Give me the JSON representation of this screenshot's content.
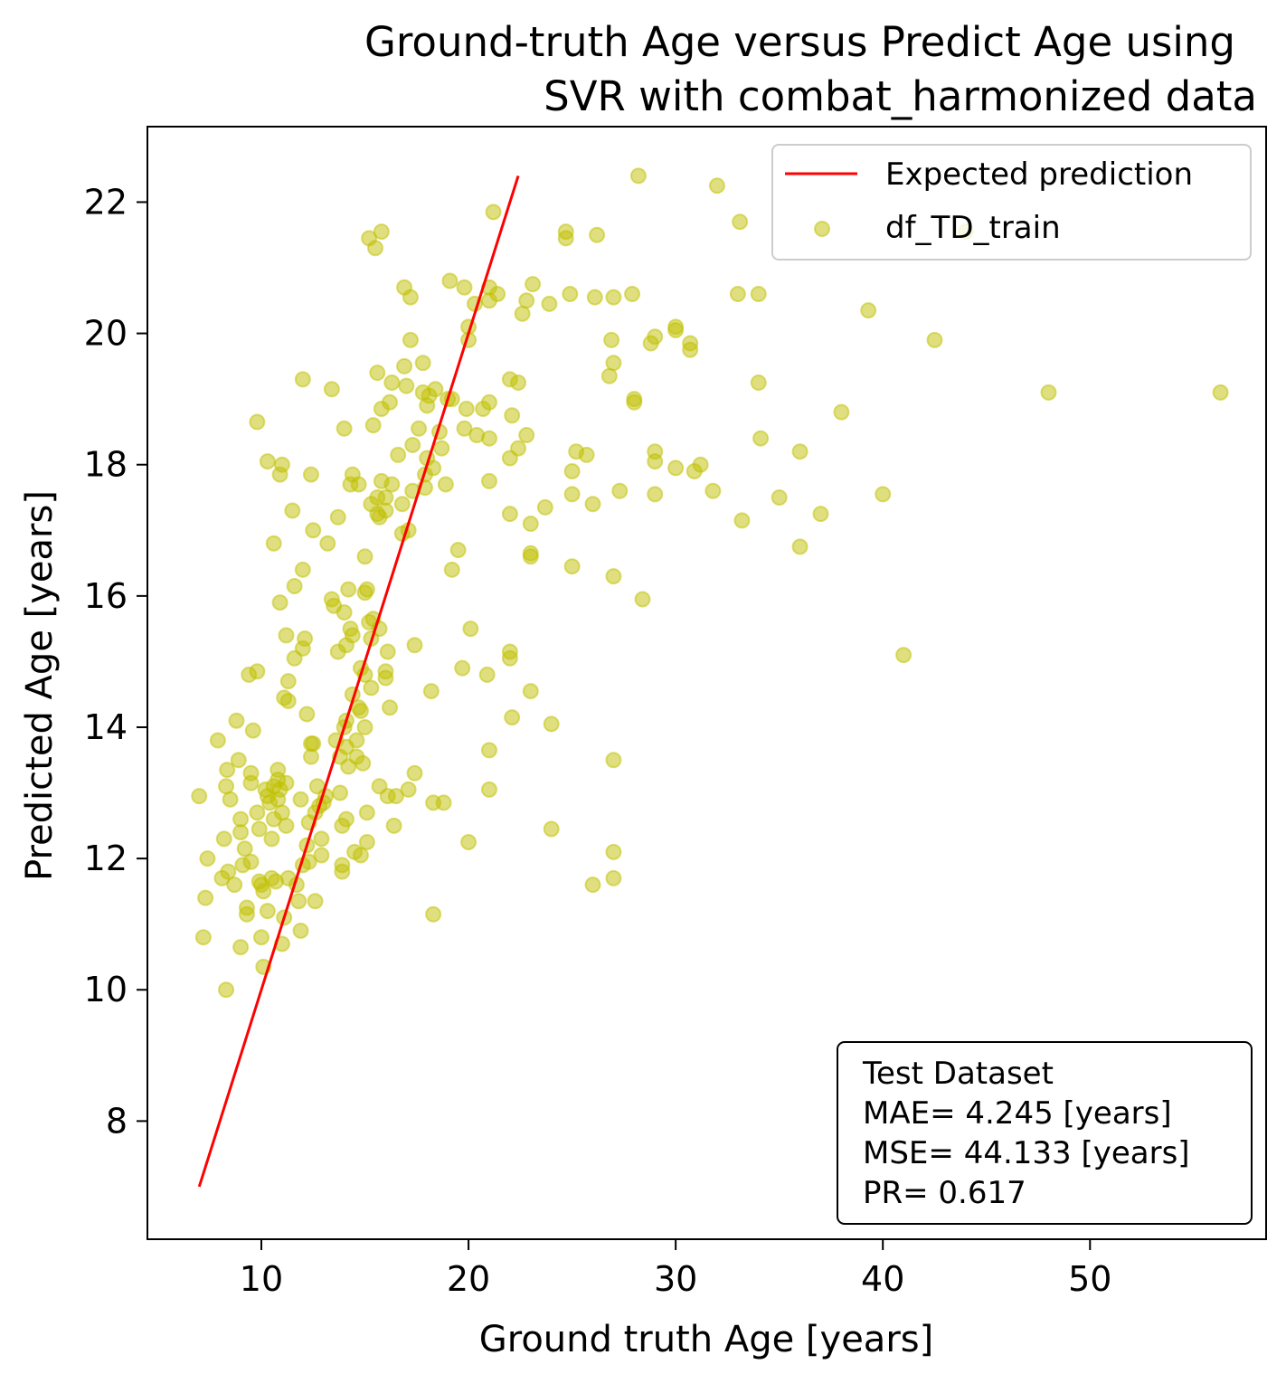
{
  "chart_data": {
    "type": "scatter",
    "title_lines": [
      "Ground-truth Age versus Predict Age using",
      "SVR  with combat_harmonized data"
    ],
    "xlabel": "Ground truth Age [years]",
    "ylabel": "Predicted Age [years]",
    "xlim": [
      4.5,
      58.5
    ],
    "ylim": [
      6.2,
      23.15
    ],
    "xticks": [
      10,
      20,
      30,
      40,
      50
    ],
    "yticks": [
      8,
      10,
      12,
      14,
      16,
      18,
      20,
      22
    ],
    "grid": false,
    "legend_position": "top-right",
    "colors": {
      "points": "#bfbf00",
      "line": "#ff0000"
    },
    "expected_line": {
      "name": "Expected prediction",
      "x": [
        7.0,
        22.4
      ],
      "y": [
        7.0,
        22.4
      ]
    },
    "series": [
      {
        "name": "df_TD_train",
        "points": [
          [
            7.0,
            12.95
          ],
          [
            7.2,
            10.8
          ],
          [
            7.3,
            11.4
          ],
          [
            7.4,
            12.0
          ],
          [
            7.9,
            13.8
          ],
          [
            8.1,
            11.7
          ],
          [
            8.2,
            12.3
          ],
          [
            8.3,
            10.0
          ],
          [
            8.3,
            13.1
          ],
          [
            8.35,
            13.35
          ],
          [
            8.4,
            11.8
          ],
          [
            8.5,
            12.9
          ],
          [
            8.7,
            11.6
          ],
          [
            8.8,
            14.1
          ],
          [
            8.9,
            13.5
          ],
          [
            9.0,
            12.4
          ],
          [
            9.0,
            12.6
          ],
          [
            9.0,
            10.65
          ],
          [
            9.1,
            11.9
          ],
          [
            9.2,
            12.15
          ],
          [
            9.3,
            11.25
          ],
          [
            9.3,
            11.15
          ],
          [
            9.4,
            14.8
          ],
          [
            9.5,
            13.3
          ],
          [
            9.5,
            11.95
          ],
          [
            9.5,
            13.15
          ],
          [
            9.6,
            13.95
          ],
          [
            9.8,
            12.7
          ],
          [
            9.8,
            14.85
          ],
          [
            9.8,
            18.65
          ],
          [
            9.9,
            12.45
          ],
          [
            9.9,
            11.65
          ],
          [
            10.0,
            10.8
          ],
          [
            10.0,
            11.6
          ],
          [
            10.1,
            11.5
          ],
          [
            10.1,
            10.35
          ],
          [
            10.2,
            13.05
          ],
          [
            10.3,
            12.95
          ],
          [
            10.3,
            11.2
          ],
          [
            10.3,
            18.05
          ],
          [
            10.4,
            12.85
          ],
          [
            10.5,
            12.3
          ],
          [
            10.5,
            11.7
          ],
          [
            10.6,
            13.1
          ],
          [
            10.6,
            12.6
          ],
          [
            10.6,
            16.8
          ],
          [
            10.7,
            11.65
          ],
          [
            10.8,
            12.9
          ],
          [
            10.8,
            13.35
          ],
          [
            10.8,
            13.2
          ],
          [
            10.9,
            17.85
          ],
          [
            10.9,
            15.9
          ],
          [
            10.9,
            13.05
          ],
          [
            11.0,
            18.0
          ],
          [
            11.0,
            12.7
          ],
          [
            11.0,
            10.7
          ],
          [
            11.1,
            14.45
          ],
          [
            11.1,
            11.1
          ],
          [
            11.2,
            15.4
          ],
          [
            11.2,
            13.15
          ],
          [
            11.2,
            12.5
          ],
          [
            11.3,
            14.7
          ],
          [
            11.3,
            14.4
          ],
          [
            11.3,
            11.7
          ],
          [
            11.5,
            17.3
          ],
          [
            11.6,
            16.15
          ],
          [
            11.6,
            15.05
          ],
          [
            11.7,
            11.6
          ],
          [
            11.8,
            11.35
          ],
          [
            11.9,
            12.9
          ],
          [
            11.9,
            10.9
          ],
          [
            12.0,
            19.3
          ],
          [
            12.0,
            16.4
          ],
          [
            12.0,
            15.2
          ],
          [
            12.0,
            11.9
          ],
          [
            12.1,
            15.35
          ],
          [
            12.2,
            14.2
          ],
          [
            12.2,
            12.2
          ],
          [
            12.3,
            12.55
          ],
          [
            12.3,
            11.95
          ],
          [
            12.4,
            17.85
          ],
          [
            12.4,
            13.75
          ],
          [
            12.4,
            13.55
          ],
          [
            12.5,
            17.0
          ],
          [
            12.5,
            13.75
          ],
          [
            12.6,
            11.35
          ],
          [
            12.6,
            12.7
          ],
          [
            12.7,
            13.1
          ],
          [
            12.8,
            12.8
          ],
          [
            12.9,
            12.05
          ],
          [
            12.9,
            12.3
          ],
          [
            13.0,
            12.85
          ],
          [
            13.1,
            12.95
          ],
          [
            13.2,
            16.8
          ],
          [
            13.4,
            19.15
          ],
          [
            13.4,
            15.95
          ],
          [
            13.5,
            15.85
          ],
          [
            13.6,
            13.8
          ],
          [
            13.7,
            17.2
          ],
          [
            13.7,
            15.15
          ],
          [
            13.8,
            13.55
          ],
          [
            13.8,
            13.0
          ],
          [
            13.9,
            12.5
          ],
          [
            13.9,
            11.9
          ],
          [
            13.9,
            11.8
          ],
          [
            14.0,
            18.55
          ],
          [
            14.0,
            15.75
          ],
          [
            14.0,
            14.0
          ],
          [
            14.1,
            15.25
          ],
          [
            14.1,
            14.1
          ],
          [
            14.1,
            13.7
          ],
          [
            14.1,
            12.6
          ],
          [
            14.2,
            16.1
          ],
          [
            14.2,
            13.4
          ],
          [
            14.3,
            17.7
          ],
          [
            14.3,
            15.5
          ],
          [
            14.4,
            17.85
          ],
          [
            14.4,
            15.4
          ],
          [
            14.4,
            14.5
          ],
          [
            14.5,
            12.1
          ],
          [
            14.6,
            13.8
          ],
          [
            14.6,
            13.55
          ],
          [
            14.7,
            17.7
          ],
          [
            14.7,
            14.3
          ],
          [
            14.8,
            14.9
          ],
          [
            14.8,
            12.05
          ],
          [
            14.8,
            14.25
          ],
          [
            14.9,
            13.45
          ],
          [
            15.0,
            16.6
          ],
          [
            15.0,
            16.05
          ],
          [
            15.0,
            14.8
          ],
          [
            15.0,
            14.0
          ],
          [
            15.1,
            12.7
          ],
          [
            15.1,
            16.1
          ],
          [
            15.1,
            12.25
          ],
          [
            15.2,
            21.45
          ],
          [
            15.2,
            15.6
          ],
          [
            15.3,
            17.4
          ],
          [
            15.3,
            14.6
          ],
          [
            15.3,
            15.35
          ],
          [
            15.4,
            18.6
          ],
          [
            15.4,
            15.65
          ],
          [
            15.5,
            21.3
          ],
          [
            15.6,
            19.4
          ],
          [
            15.6,
            17.25
          ],
          [
            15.6,
            17.5
          ],
          [
            15.7,
            17.2
          ],
          [
            15.7,
            15.5
          ],
          [
            15.7,
            13.1
          ],
          [
            15.8,
            21.55
          ],
          [
            15.8,
            18.85
          ],
          [
            15.8,
            17.75
          ],
          [
            16.0,
            14.85
          ],
          [
            16.0,
            14.75
          ],
          [
            16.0,
            17.3
          ],
          [
            16.0,
            17.5
          ],
          [
            16.1,
            15.15
          ],
          [
            16.1,
            12.95
          ],
          [
            16.2,
            18.95
          ],
          [
            16.2,
            14.3
          ],
          [
            16.3,
            19.25
          ],
          [
            16.3,
            17.7
          ],
          [
            16.4,
            12.5
          ],
          [
            16.5,
            12.95
          ],
          [
            16.6,
            18.15
          ],
          [
            16.8,
            17.4
          ],
          [
            16.8,
            16.95
          ],
          [
            16.9,
            20.7
          ],
          [
            16.9,
            19.5
          ],
          [
            17.0,
            19.2
          ],
          [
            17.1,
            17.0
          ],
          [
            17.1,
            13.05
          ],
          [
            17.2,
            20.55
          ],
          [
            17.2,
            19.9
          ],
          [
            17.3,
            17.6
          ],
          [
            17.3,
            18.3
          ],
          [
            17.4,
            15.25
          ],
          [
            17.4,
            13.3
          ],
          [
            17.6,
            18.55
          ],
          [
            17.8,
            19.55
          ],
          [
            17.8,
            19.1
          ],
          [
            17.9,
            17.85
          ],
          [
            17.9,
            17.65
          ],
          [
            18.0,
            18.9
          ],
          [
            18.0,
            18.1
          ],
          [
            18.1,
            19.05
          ],
          [
            18.2,
            14.55
          ],
          [
            18.3,
            17.95
          ],
          [
            18.3,
            12.85
          ],
          [
            18.3,
            11.15
          ],
          [
            18.4,
            19.15
          ],
          [
            18.6,
            18.5
          ],
          [
            18.7,
            18.25
          ],
          [
            18.8,
            12.85
          ],
          [
            18.9,
            17.7
          ],
          [
            19.0,
            19.0
          ],
          [
            19.1,
            20.8
          ],
          [
            19.2,
            19.0
          ],
          [
            19.2,
            16.4
          ],
          [
            19.5,
            16.7
          ],
          [
            19.7,
            14.9
          ],
          [
            19.8,
            18.55
          ],
          [
            19.8,
            20.7
          ],
          [
            19.9,
            18.85
          ],
          [
            20.0,
            20.1
          ],
          [
            20.0,
            19.9
          ],
          [
            20.0,
            12.25
          ],
          [
            20.1,
            15.5
          ],
          [
            20.3,
            20.45
          ],
          [
            20.4,
            18.45
          ],
          [
            20.7,
            18.85
          ],
          [
            20.9,
            14.8
          ],
          [
            21.0,
            20.5
          ],
          [
            21.0,
            20.7
          ],
          [
            21.0,
            18.95
          ],
          [
            21.0,
            18.4
          ],
          [
            21.0,
            17.75
          ],
          [
            21.0,
            13.65
          ],
          [
            21.0,
            13.05
          ],
          [
            21.2,
            21.85
          ],
          [
            21.4,
            20.6
          ],
          [
            22.0,
            19.3
          ],
          [
            22.0,
            18.1
          ],
          [
            22.0,
            17.25
          ],
          [
            22.0,
            15.15
          ],
          [
            22.0,
            15.05
          ],
          [
            22.1,
            18.75
          ],
          [
            22.1,
            14.15
          ],
          [
            22.4,
            19.25
          ],
          [
            22.4,
            18.25
          ],
          [
            22.6,
            20.3
          ],
          [
            22.8,
            20.5
          ],
          [
            22.8,
            18.45
          ],
          [
            23.0,
            17.1
          ],
          [
            23.0,
            16.65
          ],
          [
            23.0,
            16.6
          ],
          [
            23.0,
            14.55
          ],
          [
            23.1,
            20.75
          ],
          [
            23.7,
            17.35
          ],
          [
            23.9,
            20.45
          ],
          [
            24.0,
            14.05
          ],
          [
            24.0,
            12.45
          ],
          [
            24.7,
            21.55
          ],
          [
            24.7,
            21.45
          ],
          [
            24.9,
            20.6
          ],
          [
            25.0,
            17.9
          ],
          [
            25.0,
            17.55
          ],
          [
            25.0,
            16.45
          ],
          [
            25.2,
            18.2
          ],
          [
            25.7,
            18.15
          ],
          [
            26.0,
            17.4
          ],
          [
            26.0,
            11.6
          ],
          [
            26.1,
            20.55
          ],
          [
            26.2,
            21.5
          ],
          [
            26.8,
            19.35
          ],
          [
            26.9,
            19.9
          ],
          [
            27.0,
            19.55
          ],
          [
            27.0,
            20.55
          ],
          [
            27.0,
            16.3
          ],
          [
            27.0,
            13.5
          ],
          [
            27.0,
            12.1
          ],
          [
            27.0,
            11.7
          ],
          [
            27.3,
            17.6
          ],
          [
            27.9,
            20.6
          ],
          [
            28.0,
            19.0
          ],
          [
            28.0,
            18.95
          ],
          [
            28.2,
            22.4
          ],
          [
            28.4,
            15.95
          ],
          [
            28.8,
            19.85
          ],
          [
            29.0,
            19.95
          ],
          [
            29.0,
            18.2
          ],
          [
            29.0,
            18.05
          ],
          [
            29.0,
            17.55
          ],
          [
            30.0,
            20.1
          ],
          [
            30.0,
            20.05
          ],
          [
            30.0,
            17.95
          ],
          [
            30.7,
            19.85
          ],
          [
            30.7,
            19.75
          ],
          [
            30.9,
            17.9
          ],
          [
            31.2,
            18.0
          ],
          [
            31.8,
            17.6
          ],
          [
            32.0,
            22.25
          ],
          [
            33.0,
            20.6
          ],
          [
            33.1,
            21.7
          ],
          [
            33.2,
            17.15
          ],
          [
            34.0,
            20.6
          ],
          [
            34.0,
            19.25
          ],
          [
            34.1,
            18.4
          ],
          [
            35.0,
            17.5
          ],
          [
            36.0,
            18.2
          ],
          [
            36.0,
            16.75
          ],
          [
            37.0,
            17.25
          ],
          [
            38.0,
            18.8
          ],
          [
            39.3,
            20.35
          ],
          [
            40.0,
            17.55
          ],
          [
            41.0,
            15.1
          ],
          [
            42.5,
            19.9
          ],
          [
            44.0,
            21.55
          ],
          [
            48.0,
            19.1
          ],
          [
            56.3,
            19.1
          ]
        ]
      }
    ],
    "stats_box": {
      "title": "Test Dataset",
      "mae": "MAE= 4.245 [years]",
      "mse": "MSE= 44.133 [years]",
      "pr": "PR= 0.617"
    }
  }
}
